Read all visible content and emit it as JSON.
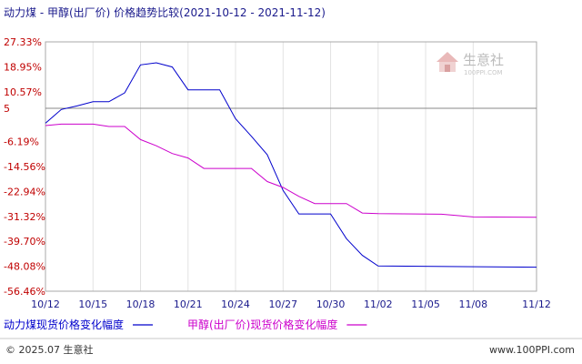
{
  "chart_data": {
    "type": "line",
    "title": "动力煤 - 甲醇(出厂价) 价格趋势比较(2021-10-12 - 2021-11-12)",
    "xlabel": "",
    "ylabel": "",
    "x_ticks": [
      "10/12",
      "10/15",
      "10/18",
      "10/21",
      "10/24",
      "10/27",
      "10/30",
      "11/02",
      "11/05",
      "11/08",
      "11/12"
    ],
    "y_ticks": [
      "27.33%",
      "18.95%",
      "10.57%",
      "5",
      "-6.19%",
      "-14.56%",
      "-22.94%",
      "-31.32%",
      "-39.70%",
      "-48.08%",
      "-56.46%"
    ],
    "y_tick_values": [
      27.33,
      18.95,
      10.57,
      5,
      -6.19,
      -14.56,
      -22.94,
      -31.32,
      -39.7,
      -48.08,
      -56.46
    ],
    "ylim": [
      -56.46,
      27.33
    ],
    "baseline": 5,
    "grid": "vertical",
    "legend_position": "bottom",
    "series": [
      {
        "name": "动力煤现货价格变化幅度",
        "color": "#0000cc",
        "points": [
          [
            "10/12",
            0.0
          ],
          [
            "10/13",
            4.6
          ],
          [
            "10/14",
            5.8
          ],
          [
            "10/15",
            7.2
          ],
          [
            "10/16",
            7.2
          ],
          [
            "10/17",
            10.2
          ],
          [
            "10/18",
            19.6
          ],
          [
            "10/19",
            20.3
          ],
          [
            "10/20",
            18.9
          ],
          [
            "10/21",
            11.2
          ],
          [
            "10/22",
            11.2
          ],
          [
            "10/23",
            11.2
          ],
          [
            "10/24",
            1.5
          ],
          [
            "10/25",
            -4.4
          ],
          [
            "10/26",
            -10.6
          ],
          [
            "10/27",
            -22.6
          ],
          [
            "10/28",
            -30.5
          ],
          [
            "10/29",
            -30.5
          ],
          [
            "10/30",
            -30.5
          ],
          [
            "10/31",
            -38.8
          ],
          [
            "11/01",
            -44.4
          ],
          [
            "11/02",
            -48.0
          ],
          [
            "11/12",
            -48.4
          ]
        ]
      },
      {
        "name": "甲醇(出厂价)现货价格变化幅度",
        "color": "#cc00cc",
        "points": [
          [
            "10/12",
            -0.8
          ],
          [
            "10/13",
            -0.3
          ],
          [
            "10/15",
            -0.3
          ],
          [
            "10/16",
            -1.1
          ],
          [
            "10/17",
            -1.1
          ],
          [
            "10/18",
            -5.5
          ],
          [
            "10/19",
            -7.6
          ],
          [
            "10/20",
            -10.2
          ],
          [
            "10/21",
            -11.7
          ],
          [
            "10/22",
            -15.2
          ],
          [
            "10/25",
            -15.2
          ],
          [
            "10/26",
            -19.6
          ],
          [
            "10/27",
            -21.6
          ],
          [
            "10/28",
            -24.6
          ],
          [
            "10/29",
            -27.0
          ],
          [
            "10/31",
            -27.0
          ],
          [
            "11/01",
            -30.2
          ],
          [
            "11/02",
            -30.4
          ],
          [
            "11/06",
            -30.6
          ],
          [
            "11/08",
            -31.5
          ],
          [
            "11/12",
            -31.6
          ]
        ]
      }
    ]
  },
  "watermark": {
    "name": "生意社",
    "url": "100PPI.COM"
  },
  "footer": {
    "copyright": "© 2025.07 生意社",
    "site": "www.100PPI.com"
  }
}
